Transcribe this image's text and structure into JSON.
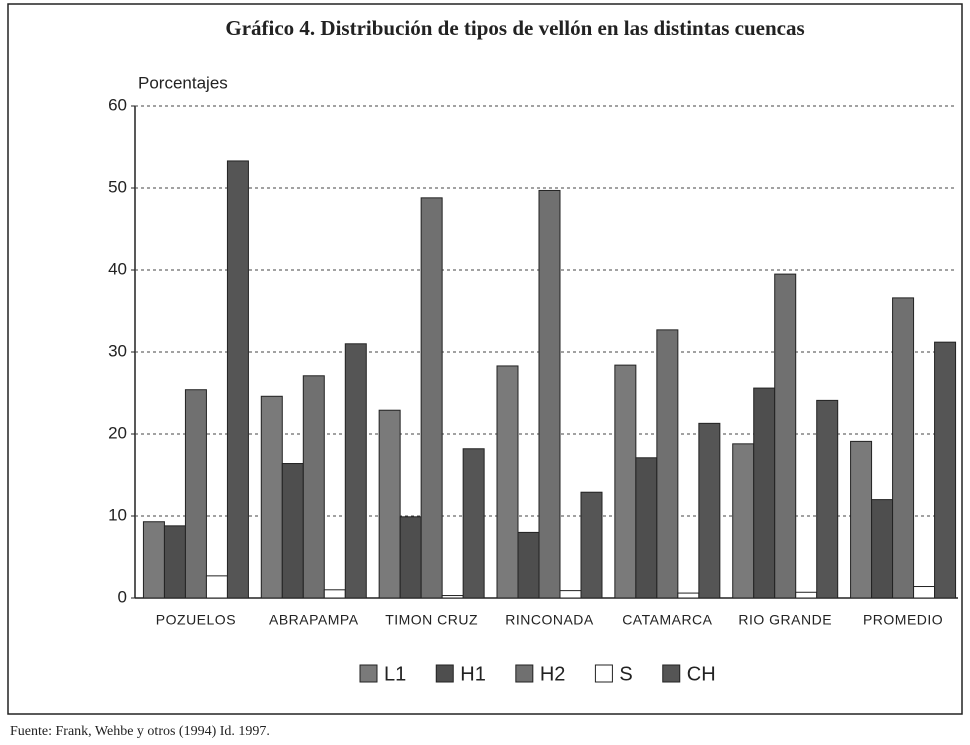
{
  "chart_data": {
    "type": "bar",
    "title": "Gráfico 4. Distribución de tipos de vellón en las distintas cuencas",
    "y_label": "Porcentajes",
    "source": "Fuente: Frank, Wehbe y otros (1994) Id. 1997.",
    "categories": [
      "POZUELOS",
      "ABRAPAMPA",
      "TIMON CRUZ",
      "RINCONADA",
      "CATAMARCA",
      "RIO GRANDE",
      "PROMEDIO"
    ],
    "series": [
      {
        "name": "L1",
        "color": "#7a7a7a",
        "values": [
          9.3,
          24.6,
          22.9,
          28.3,
          28.4,
          18.8,
          19.1
        ]
      },
      {
        "name": "H1",
        "color": "#4e4e4e",
        "values": [
          8.8,
          16.4,
          9.9,
          8.0,
          17.1,
          25.6,
          12.0
        ]
      },
      {
        "name": "H2",
        "color": "#707070",
        "values": [
          25.4,
          27.1,
          48.8,
          49.7,
          32.7,
          39.5,
          36.6
        ]
      },
      {
        "name": "S",
        "color": "#ffffff",
        "values": [
          2.7,
          1.0,
          0.3,
          0.9,
          0.6,
          0.7,
          1.4
        ]
      },
      {
        "name": "CH",
        "color": "#555555",
        "values": [
          53.3,
          31.0,
          18.2,
          12.9,
          21.3,
          24.1,
          31.2
        ]
      }
    ],
    "ylim": [
      0,
      60
    ],
    "yticks": [
      0,
      10,
      20,
      30,
      40,
      50,
      60
    ],
    "grid": true
  }
}
